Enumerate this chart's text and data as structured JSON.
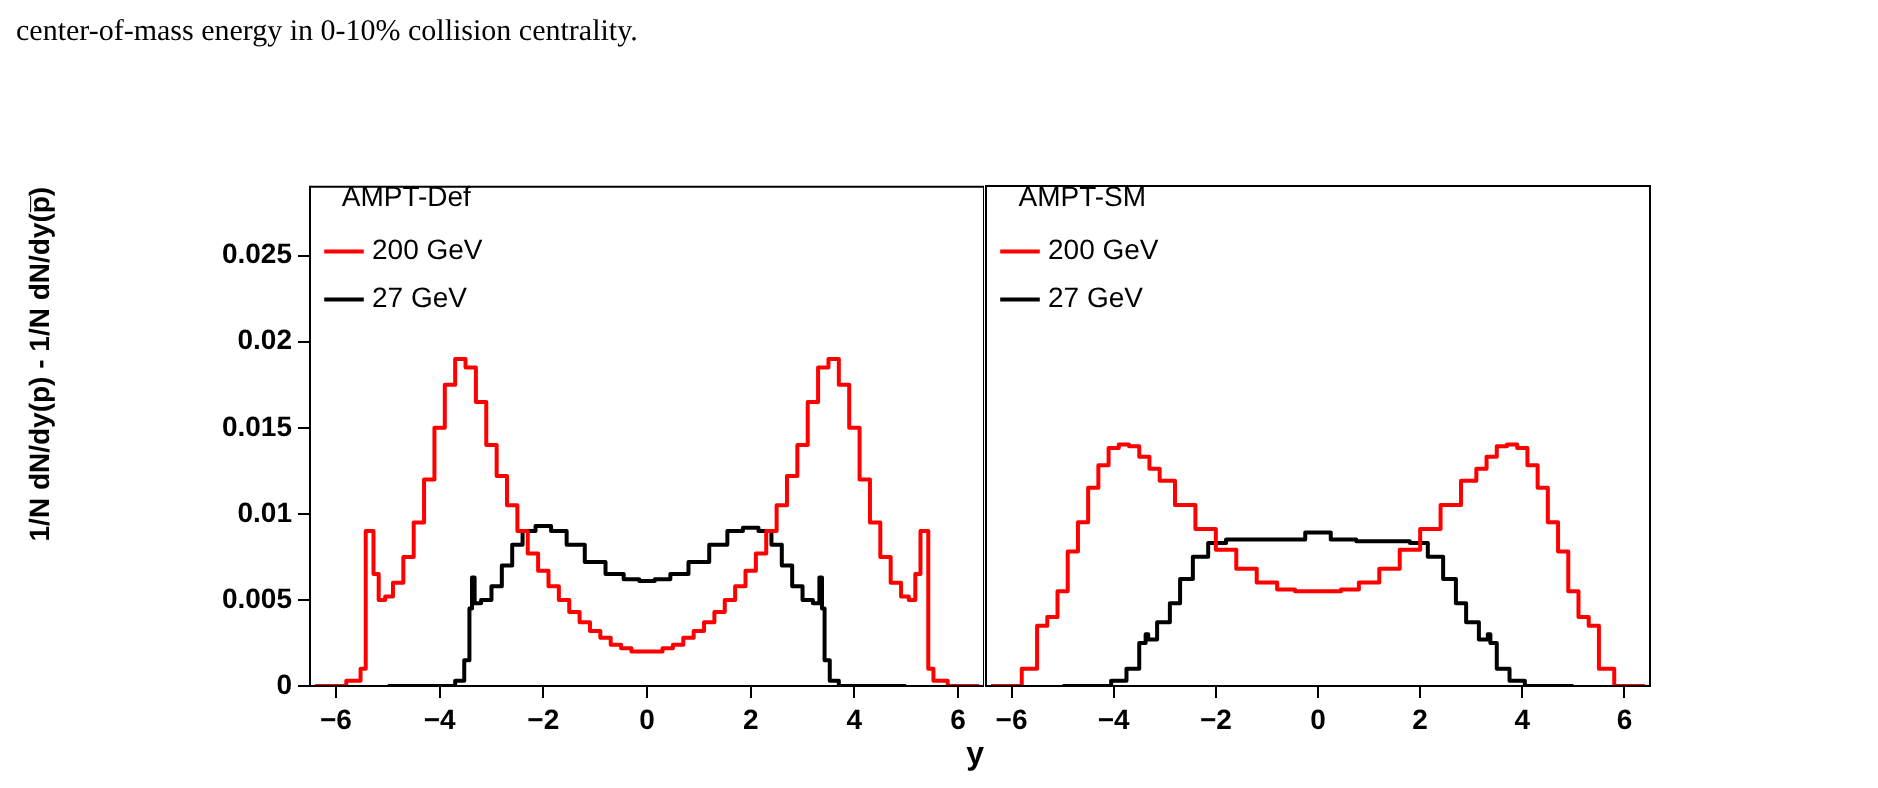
{
  "chart_data": [
    {
      "type": "step",
      "legend_title": "AMPT-Def",
      "ylabel": "1/N dN/dy(p) - 1/N dN/dy(p̅)",
      "xlabel": "y",
      "annotations": [
        "center-of-mass energy in 0-10% collision centrality."
      ],
      "xlim": [
        -6.5,
        6.5
      ],
      "ylim": [
        0,
        0.029
      ],
      "xticks": [
        -6,
        -4,
        -2,
        0,
        2,
        4,
        6
      ],
      "yticks": [
        0,
        0.005,
        0.01,
        0.015,
        0.02,
        0.025
      ],
      "grid": false,
      "legend": "top left",
      "marker": "none",
      "line_style": "solid",
      "series": [
        {
          "name": "200 GeV",
          "color": "#ff0000",
          "x": [
            -6.4,
            -6,
            -5.6,
            -5.45,
            -5.4,
            -5.3,
            -5.25,
            -5.1,
            -5,
            -4.8,
            -4.6,
            -4.4,
            -4.2,
            -4,
            -3.8,
            -3.6,
            -3.4,
            -3.2,
            -3,
            -2.8,
            -2.6,
            -2.4,
            -2.2,
            -2,
            -1.8,
            -1.6,
            -1.4,
            -1.2,
            -1,
            -0.8,
            -0.6,
            -0.4,
            -0.2,
            0,
            0.2,
            0.4,
            0.6,
            0.8,
            1,
            1.2,
            1.4,
            1.6,
            1.8,
            2,
            2.2,
            2.4,
            2.6,
            2.8,
            3,
            3.2,
            3.4,
            3.6,
            3.8,
            4,
            4.2,
            4.4,
            4.6,
            4.8,
            5,
            5.1,
            5.25,
            5.3,
            5.4,
            5.45,
            5.6,
            6,
            6.4
          ],
          "values": [
            0,
            0,
            0.0003,
            0.001,
            0.009,
            0.009,
            0.0065,
            0.005,
            0.0052,
            0.006,
            0.0075,
            0.0095,
            0.012,
            0.015,
            0.0175,
            0.019,
            0.0185,
            0.0165,
            0.014,
            0.0122,
            0.0105,
            0.009,
            0.0077,
            0.0067,
            0.0058,
            0.005,
            0.0043,
            0.0037,
            0.0032,
            0.0028,
            0.0024,
            0.0022,
            0.002,
            0.002,
            0.002,
            0.0022,
            0.0024,
            0.0028,
            0.0032,
            0.0037,
            0.0043,
            0.005,
            0.0058,
            0.0067,
            0.0077,
            0.009,
            0.0105,
            0.0122,
            0.014,
            0.0165,
            0.0185,
            0.019,
            0.0175,
            0.015,
            0.012,
            0.0095,
            0.0075,
            0.006,
            0.0052,
            0.005,
            0.0065,
            0.009,
            0.009,
            0.001,
            0.0003,
            0,
            0
          ]
        },
        {
          "name": "27 GeV",
          "color": "#000000",
          "x": [
            -5,
            -3.8,
            -3.6,
            -3.45,
            -3.4,
            -3.35,
            -3.3,
            -3.1,
            -2.9,
            -2.7,
            -2.5,
            -2.3,
            -2,
            -1.7,
            -1.4,
            -1,
            -0.6,
            -0.3,
            0,
            0.3,
            0.6,
            1,
            1.4,
            1.7,
            2,
            2.3,
            2.5,
            2.7,
            2.9,
            3.1,
            3.3,
            3.35,
            3.4,
            3.45,
            3.6,
            3.8,
            5
          ],
          "values": [
            0,
            0,
            0.0003,
            0.0015,
            0.0045,
            0.0063,
            0.0048,
            0.005,
            0.0058,
            0.007,
            0.0082,
            0.009,
            0.0093,
            0.009,
            0.0082,
            0.0072,
            0.0065,
            0.0062,
            0.0061,
            0.0062,
            0.0065,
            0.0072,
            0.0082,
            0.009,
            0.0092,
            0.009,
            0.0082,
            0.007,
            0.0058,
            0.005,
            0.0048,
            0.0063,
            0.0045,
            0.0015,
            0.0003,
            0,
            0
          ]
        }
      ]
    },
    {
      "type": "step",
      "legend_title": "AMPT-SM",
      "xlim": [
        -6.5,
        6.5
      ],
      "ylim": [
        0,
        0.029
      ],
      "xticks": [
        -6,
        -4,
        -2,
        0,
        2,
        4,
        6
      ],
      "yticks": [
        0,
        0.005,
        0.01,
        0.015,
        0.02,
        0.025
      ],
      "grid": false,
      "legend": "top left",
      "marker": "none",
      "line_style": "solid",
      "tick_labels": "x",
      "series": [
        {
          "name": "200 GeV",
          "color": "#ff0000",
          "x": [
            -6.4,
            -6,
            -5.6,
            -5.4,
            -5.2,
            -5,
            -4.8,
            -4.6,
            -4.4,
            -4.2,
            -4,
            -3.8,
            -3.6,
            -3.4,
            -3.2,
            -3,
            -2.6,
            -2.2,
            -1.8,
            -1.4,
            -1,
            -0.6,
            -0.3,
            0,
            0.3,
            0.6,
            1,
            1.4,
            1.8,
            2.2,
            2.6,
            3,
            3.2,
            3.4,
            3.6,
            3.8,
            4,
            4.2,
            4.4,
            4.6,
            4.8,
            5,
            5.2,
            5.4,
            5.6,
            6,
            6.4
          ],
          "values": [
            0,
            0,
            0.001,
            0.0035,
            0.004,
            0.0055,
            0.0078,
            0.0095,
            0.0115,
            0.0128,
            0.0138,
            0.014,
            0.0139,
            0.0133,
            0.0126,
            0.0119,
            0.0105,
            0.0091,
            0.0079,
            0.0068,
            0.006,
            0.0056,
            0.0055,
            0.0055,
            0.0055,
            0.0056,
            0.006,
            0.0068,
            0.0079,
            0.0091,
            0.0105,
            0.0119,
            0.0126,
            0.0133,
            0.0139,
            0.014,
            0.0138,
            0.0128,
            0.0115,
            0.0095,
            0.0078,
            0.0055,
            0.004,
            0.0035,
            0.001,
            0,
            0
          ]
        },
        {
          "name": "27 GeV",
          "color": "#000000",
          "x": [
            -5,
            -4.2,
            -3.9,
            -3.6,
            -3.4,
            -3.35,
            -3.3,
            -3,
            -2.8,
            -2.6,
            -2.3,
            -2,
            -1.6,
            -1,
            -0.5,
            0,
            0.5,
            1,
            1.6,
            2,
            2.3,
            2.6,
            2.8,
            3,
            3.3,
            3.35,
            3.4,
            3.6,
            3.9,
            4.2,
            5
          ],
          "values": [
            0,
            0,
            0.0003,
            0.001,
            0.0025,
            0.003,
            0.0027,
            0.0037,
            0.0048,
            0.0062,
            0.0075,
            0.0083,
            0.0085,
            0.0085,
            0.0085,
            0.0089,
            0.0085,
            0.0084,
            0.0084,
            0.0083,
            0.0075,
            0.0062,
            0.0048,
            0.0037,
            0.0027,
            0.003,
            0.0025,
            0.001,
            0.0003,
            0,
            0
          ]
        }
      ]
    }
  ]
}
